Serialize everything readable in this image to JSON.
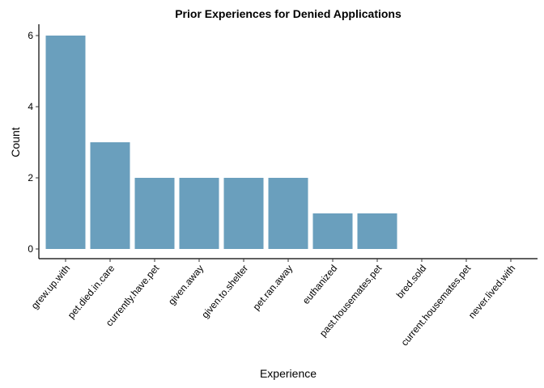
{
  "chart_data": {
    "type": "bar",
    "title": "Prior Experiences for Denied Applications",
    "xlabel": "Experience",
    "ylabel": "Count",
    "categories": [
      "grew.up.with",
      "pet.died.in.care",
      "currently.have.pet",
      "given.away",
      "given.to.shelter",
      "pet.ran.away",
      "euthanized",
      "past.housemates.pet",
      "bred.sold",
      "current.housemates.pet",
      "never.lived.with"
    ],
    "values": [
      6,
      3,
      2,
      2,
      2,
      2,
      1,
      1,
      0,
      0,
      0
    ],
    "ylim": [
      0,
      6.3
    ],
    "yticks": [
      0,
      2,
      4,
      6
    ],
    "grid": false,
    "bar_color": "#6a9fbd"
  }
}
